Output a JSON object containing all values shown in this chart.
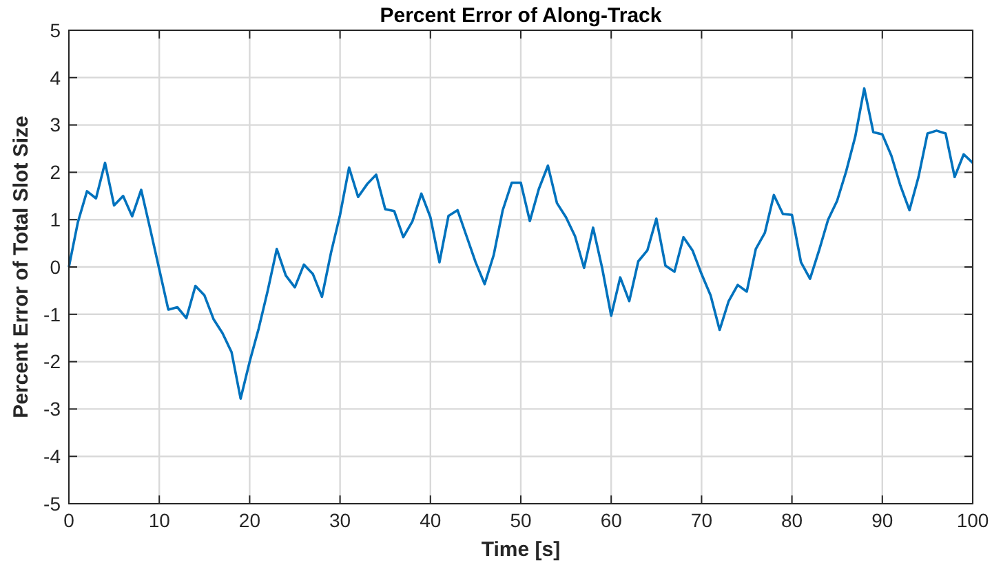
{
  "chart_data": {
    "type": "line",
    "title": "Percent Error of Along-Track",
    "xlabel": "Time [s]",
    "ylabel": "Percent Error of Total Slot Size",
    "x": [
      0,
      1,
      2,
      3,
      4,
      5,
      6,
      7,
      8,
      9,
      10,
      11,
      12,
      13,
      14,
      15,
      16,
      17,
      18,
      19,
      20,
      21,
      22,
      23,
      24,
      25,
      26,
      27,
      28,
      29,
      30,
      31,
      32,
      33,
      34,
      35,
      36,
      37,
      38,
      39,
      40,
      41,
      42,
      43,
      44,
      45,
      46,
      47,
      48,
      49,
      50,
      51,
      52,
      53,
      54,
      55,
      56,
      57,
      58,
      59,
      60,
      61,
      62,
      63,
      64,
      65,
      66,
      67,
      68,
      69,
      70,
      71,
      72,
      73,
      74,
      75,
      76,
      77,
      78,
      79,
      80,
      81,
      82,
      83,
      84,
      85,
      86,
      87,
      88,
      89,
      90,
      91,
      92,
      93,
      94,
      95,
      96,
      97,
      98,
      99,
      100
    ],
    "series": [
      {
        "color": "#0072bd",
        "values": [
          0,
          0.95,
          1.6,
          1.45,
          2.2,
          1.3,
          1.5,
          1.07,
          1.63,
          0.8,
          -0.05,
          -0.9,
          -0.85,
          -1.08,
          -0.4,
          -0.6,
          -1.1,
          -1.4,
          -1.8,
          -2.78,
          -2,
          -1.3,
          -0.5,
          0.38,
          -0.18,
          -0.43,
          0.05,
          -0.15,
          -0.63,
          0.3,
          1.1,
          2.1,
          1.48,
          1.75,
          1.95,
          1.22,
          1.18,
          0.63,
          0.96,
          1.55,
          1.05,
          0.1,
          1.08,
          1.2,
          0.65,
          0.1,
          -0.36,
          0.25,
          1.2,
          1.78,
          1.78,
          0.97,
          1.65,
          2.14,
          1.35,
          1.05,
          0.65,
          -0.02,
          0.83,
          -0.02,
          -1.03,
          -0.22,
          -0.72,
          0.12,
          0.35,
          1.02,
          0.03,
          -0.1,
          0.63,
          0.35,
          -0.15,
          -0.6,
          -1.33,
          -0.72,
          -0.38,
          -0.52,
          0.38,
          0.72,
          1.52,
          1.12,
          1.1,
          0.1,
          -0.25,
          0.35,
          1,
          1.4,
          2.02,
          2.75,
          3.77,
          2.85,
          2.8,
          2.35,
          1.72,
          1.2,
          1.9,
          2.82,
          2.88,
          2.82,
          1.9,
          2.38,
          2.2
        ]
      }
    ],
    "xlim": [
      0,
      100
    ],
    "xticks": [
      0,
      10,
      20,
      30,
      40,
      50,
      60,
      70,
      80,
      90,
      100
    ],
    "ylim": [
      -5,
      5
    ],
    "yticks": [
      -5,
      -4,
      -3,
      -2,
      -1,
      0,
      1,
      2,
      3,
      4,
      5
    ],
    "grid": true,
    "marker": "none",
    "line_style": "solid"
  }
}
